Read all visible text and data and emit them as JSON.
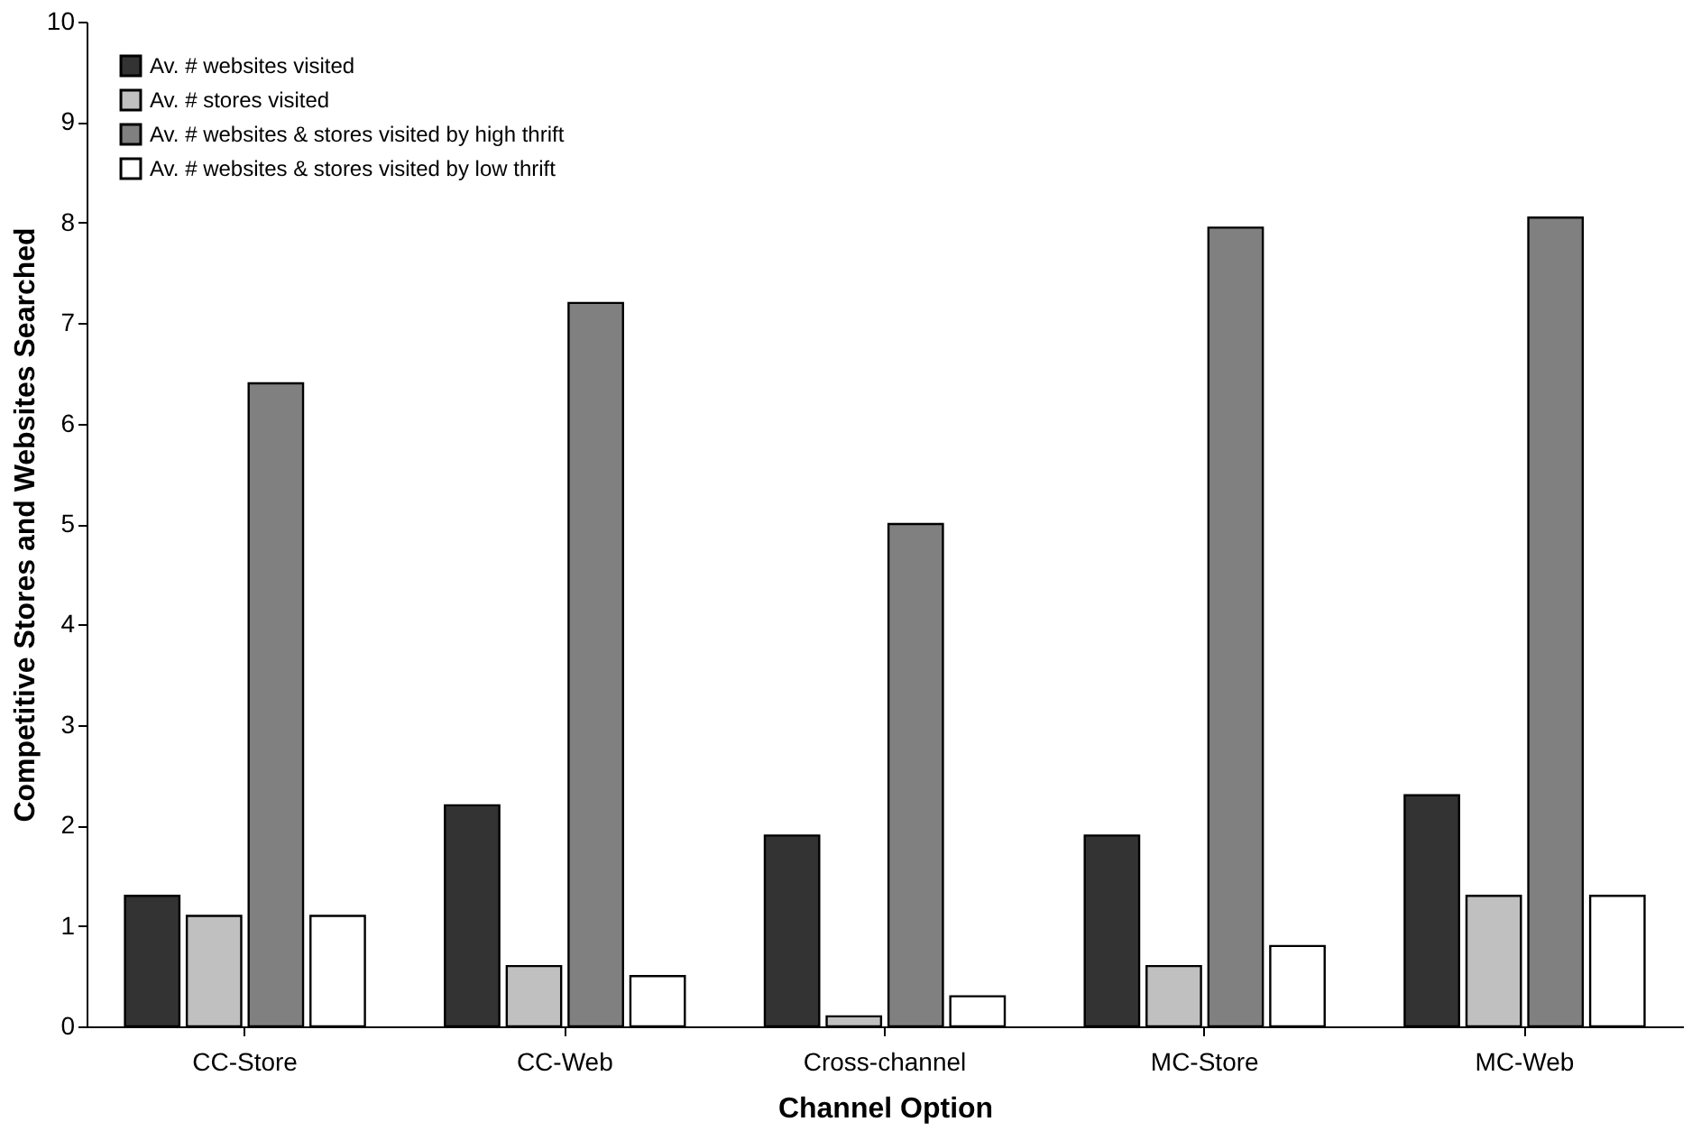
{
  "chart_data": {
    "type": "bar",
    "xlabel": "Channel Option",
    "ylabel": "Competitive Stores and Websites Searched",
    "categories": [
      "CC-Store",
      "CC-Web",
      "Cross-channel",
      "MC-Store",
      "MC-Web"
    ],
    "series": [
      {
        "name": "Av. # websites visited",
        "color": "#333333",
        "values": [
          1.3,
          2.2,
          1.9,
          1.9,
          2.3
        ]
      },
      {
        "name": "Av. # stores visited",
        "color": "#c0c0c0",
        "values": [
          1.1,
          0.6,
          0.1,
          0.6,
          1.3
        ]
      },
      {
        "name": "Av. # websites & stores visited by high thrift",
        "color": "#808080",
        "values": [
          6.4,
          7.2,
          5.0,
          7.95,
          8.05
        ]
      },
      {
        "name": "Av. # websites & stores visited by low thrift",
        "color": "#ffffff",
        "values": [
          1.1,
          0.5,
          0.3,
          0.8,
          1.3
        ]
      }
    ],
    "ylim": [
      0,
      10
    ],
    "yticks": [
      0,
      1,
      2,
      3,
      4,
      5,
      6,
      7,
      8,
      9,
      10
    ],
    "grid": false,
    "legend": "top left"
  }
}
